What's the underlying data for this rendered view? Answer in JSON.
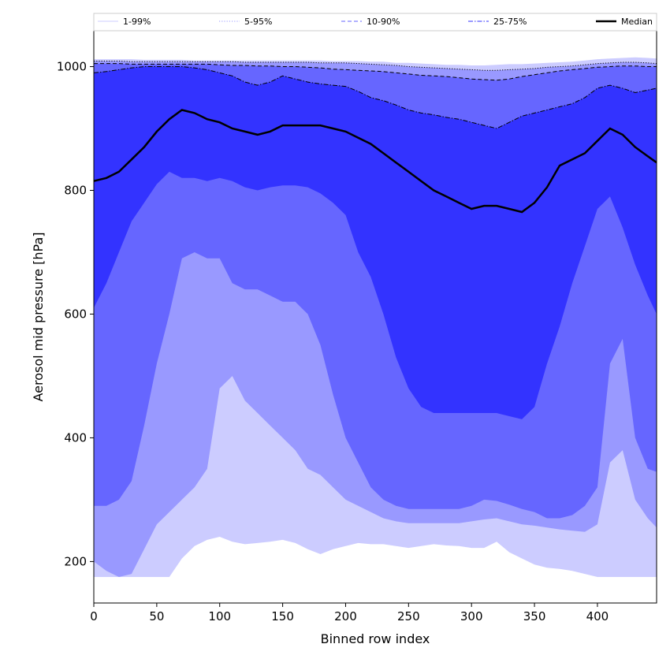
{
  "chart_data": {
    "type": "area",
    "xlabel": "Binned row index",
    "ylabel": "Aerosol mid pressure [hPa]",
    "xlim": [
      0,
      447
    ],
    "ylim": [
      133,
      1058
    ],
    "x_ticks": [
      0,
      50,
      100,
      150,
      200,
      250,
      300,
      350,
      400
    ],
    "y_ticks": [
      200,
      400,
      600,
      800,
      1000
    ],
    "legend": {
      "placement": "top",
      "entries": [
        {
          "label": "1-99%",
          "color": "#ccccff",
          "style": "solid"
        },
        {
          "label": "5-95%",
          "color": "#9999ff",
          "style": "dotted"
        },
        {
          "label": "10-90%",
          "color": "#6666ff",
          "style": "dashed"
        },
        {
          "label": "25-75%",
          "color": "#3333ff",
          "style": "dashdot"
        },
        {
          "label": "Median",
          "color": "#000000",
          "style": "solid"
        }
      ]
    },
    "x": [
      0,
      10,
      20,
      30,
      40,
      50,
      60,
      70,
      80,
      90,
      100,
      110,
      120,
      130,
      140,
      150,
      160,
      170,
      180,
      190,
      200,
      210,
      220,
      230,
      240,
      250,
      260,
      270,
      280,
      290,
      300,
      310,
      320,
      330,
      340,
      350,
      360,
      370,
      380,
      390,
      400,
      410,
      420,
      430,
      440,
      447
    ],
    "bands": [
      {
        "name": "1-99%",
        "color": "#ccccff",
        "lower": [
          175,
          175,
          175,
          175,
          175,
          175,
          175,
          205,
          225,
          235,
          240,
          232,
          228,
          230,
          232,
          235,
          230,
          220,
          212,
          220,
          225,
          230,
          228,
          228,
          225,
          222,
          225,
          228,
          226,
          225,
          222,
          222,
          232,
          215,
          205,
          195,
          190,
          188,
          185,
          180,
          175,
          175,
          175,
          175,
          175,
          175
        ],
        "upper": [
          1012,
          1012,
          1012,
          1012,
          1011,
          1011,
          1011,
          1011,
          1010,
          1010,
          1010,
          1010,
          1010,
          1010,
          1010,
          1010,
          1010,
          1010,
          1010,
          1009,
          1009,
          1009,
          1008,
          1008,
          1006,
          1006,
          1005,
          1004,
          1003,
          1003,
          1002,
          1002,
          1003,
          1004,
          1004,
          1005,
          1006,
          1007,
          1008,
          1010,
          1012,
          1013,
          1014,
          1015,
          1014,
          1013
        ]
      },
      {
        "name": "5-95%",
        "color": "#9999ff",
        "lower": [
          200,
          185,
          175,
          180,
          220,
          260,
          280,
          300,
          320,
          350,
          480,
          500,
          460,
          440,
          420,
          400,
          380,
          350,
          340,
          320,
          300,
          290,
          280,
          270,
          265,
          262,
          262,
          262,
          262,
          262,
          265,
          268,
          270,
          265,
          260,
          258,
          255,
          252,
          250,
          248,
          260,
          360,
          380,
          300,
          270,
          255
        ],
        "upper": [
          1009,
          1009,
          1009,
          1008,
          1008,
          1008,
          1008,
          1008,
          1008,
          1008,
          1008,
          1008,
          1007,
          1007,
          1007,
          1007,
          1007,
          1007,
          1006,
          1006,
          1006,
          1005,
          1004,
          1003,
          1002,
          1000,
          999,
          998,
          997,
          996,
          995,
          994,
          994,
          995,
          996,
          997,
          999,
          1000,
          1001,
          1003,
          1005,
          1006,
          1007,
          1007,
          1006,
          1005
        ]
      },
      {
        "name": "10-90%",
        "color": "#6666ff",
        "lower": [
          290,
          290,
          300,
          330,
          420,
          520,
          600,
          690,
          700,
          690,
          690,
          650,
          640,
          640,
          630,
          620,
          620,
          600,
          550,
          470,
          400,
          360,
          320,
          300,
          290,
          285,
          285,
          285,
          285,
          285,
          290,
          300,
          298,
          292,
          285,
          280,
          270,
          270,
          275,
          290,
          320,
          520,
          560,
          400,
          350,
          345
        ],
        "upper": [
          1005,
          1005,
          1005,
          1004,
          1004,
          1004,
          1004,
          1004,
          1004,
          1004,
          1003,
          1002,
          1002,
          1001,
          1001,
          1000,
          1000,
          999,
          998,
          996,
          995,
          994,
          993,
          992,
          990,
          988,
          986,
          985,
          984,
          982,
          980,
          979,
          978,
          980,
          984,
          987,
          990,
          993,
          995,
          997,
          999,
          1000,
          1001,
          1001,
          1000,
          1000
        ]
      },
      {
        "name": "25-75%",
        "color": "#3333ff",
        "lower": [
          610,
          650,
          700,
          750,
          780,
          810,
          830,
          820,
          820,
          815,
          820,
          815,
          805,
          800,
          805,
          808,
          808,
          805,
          795,
          780,
          760,
          700,
          660,
          600,
          530,
          480,
          450,
          440,
          440,
          440,
          440,
          440,
          440,
          435,
          430,
          450,
          520,
          580,
          650,
          710,
          770,
          790,
          740,
          680,
          630,
          600
        ],
        "upper": [
          990,
          992,
          995,
          998,
          1000,
          1000,
          1000,
          1000,
          998,
          995,
          990,
          985,
          975,
          970,
          975,
          985,
          980,
          975,
          972,
          970,
          968,
          960,
          950,
          945,
          938,
          930,
          925,
          922,
          918,
          915,
          910,
          905,
          900,
          910,
          920,
          925,
          930,
          935,
          940,
          950,
          965,
          970,
          965,
          958,
          962,
          965
        ]
      }
    ],
    "series": [
      {
        "name": "Median",
        "color": "#000000",
        "values": [
          815,
          820,
          830,
          850,
          870,
          895,
          915,
          930,
          925,
          915,
          910,
          900,
          895,
          890,
          895,
          905,
          905,
          905,
          905,
          900,
          895,
          885,
          875,
          860,
          845,
          830,
          815,
          800,
          790,
          780,
          770,
          775,
          775,
          770,
          765,
          780,
          805,
          840,
          850,
          860,
          880,
          900,
          890,
          870,
          855,
          845
        ]
      }
    ]
  }
}
